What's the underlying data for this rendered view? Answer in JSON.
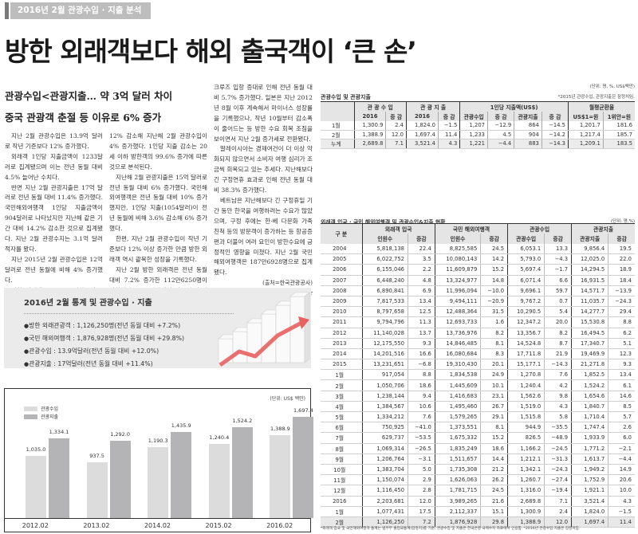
{
  "section_tag": "2016년 2월 관광수입 · 지출 분석",
  "headline": "방한 외래객보다 해외 출국객이 ‘큰 손’",
  "subheads": [
    "관광수입<관광지출… 약 3억 달러 차이",
    "중국 관광객 춘절 등 이유로 6% 증가"
  ],
  "article": {
    "col1": [
      "지난 2월 관광수입은 13.9억 달러로 작년 기준보다 12% 증가했다.",
      "외래객 1인당 지출금액이 1233달러로 집계됐으며 이는 전년 동월 대비 4.5% 늘어난 수치다.",
      "반면 지난 2월 관광지출은 17억 달러로 전년 동월 대비 11.4% 증가했다. 국민해외여행객 1인당 지출금액이 904달러로 나타났지만 지난해 같은 기간 대비 14.2% 감소한 것으로 집계됐다. 지난 2월 관광수지는 3.1억 달러 적자를 봤다.",
      "지난 2015년 2월 관광수입은 12억 달러로 전년 동월에 비해 4% 증가했다.",
      "방한 외래객은 19% 증가했으나 1인당 지출이 1181달러로 전년 동월에 비해"
    ],
    "col2": [
      "12% 감소해 지난해 2월 관광수입이 4% 증가했다. 1인당 지출 감소는 20세 이하 방한객의 99.6% 증가에 따른 것으로 분석된다.",
      "지난해 2월 관광지출은 15억 달러로 전년 동월 대비 6% 증가했다. 국민해외여행객은 전년 동월 대비 10% 증가했지만, 1인당 지출(1054달러)이 전년 동월에 비해 3.6% 감소해 6% 증가했다.",
      "한편, 지난 2월 관광수입이 작년 기준보다 12% 이상 증가한 만큼 방한 외래객 역시 괄목한 성장을 기록했다.",
      "지난 2월 방한 외래객은 전년 동월 대비 7.2% 증가한 112만6250명이 방한했다. 중국 관광객의 경우 춘절 연휴 기간과"
    ],
    "col3": [
      "크루즈 입항 증대로 인해 전년 동월 대비 5.7% 증가했다. 일본은 지난 2012년 8월 이후 계속해서 마이너스 성장률을 기록했으나, 작년 10월부터 감소폭이 줄어드는 등 방한 수요 회복 조짐을 보이면서 지난 2월 증가세로 전환됐다.",
      "말레이시아는 경제여건이 더 이상 악화되지 않으면서 소비자 여행 심리가 조금씩 회복되고 있는 추세다. 지난해보다 긴 구정연휴 효과로 인해 전년 동월 대비 38.3% 증가했다.",
      "베트남은 지난해보다 긴 구정휴일 기간 동안 한국을 여행하려는 수요가 많았으며, 구정 후에는 한·베 다문화 가족 친척 등의 방문객이 증가하는 등 항공증편과 더불어 여러 요인이 방한수요에 긍정적인 영향을 미쳤다. 지난 2월 국민 해외여행객은 187만6928명으로 집계됐다."
    ],
    "source": "(출처=한국관광공사)",
    "byline": "(강세희 기자) ksh@gtn.co.kr"
  },
  "stat_box": {
    "title": "2016년 2월 통계 및 관광수입 · 지출",
    "items": [
      "방한 외래관광객 : 1,126,250명(전년 동월 대비 +7.2%)",
      "국민 해외여행객 : 1,876,928명(전년 동월 대비 +29.8%)",
      "관광수입 : 13.9억달러(전년 동월 대비 +12.0%)",
      "관광지출 : 17억달러(전년 동월 대비 +11.4%)"
    ]
  },
  "chart_data": {
    "type": "bar",
    "title": "",
    "unit": "(단위: US$ 백만)",
    "categories": [
      "2012.02",
      "2013.02",
      "2014.02",
      "2015.02",
      "2016.02"
    ],
    "series": [
      {
        "name": "관광수입",
        "color": "#dcdcdc",
        "values": [
          1035.0,
          937.5,
          1190.3,
          1240.4,
          1388.9
        ],
        "labels": [
          "1,035.0",
          "937.5",
          "1,190.3",
          "1,240.4",
          "1,388.9"
        ]
      },
      {
        "name": "관광지출",
        "color": "#b4b4b6",
        "values": [
          1334.1,
          1292.0,
          1435.9,
          1524.2,
          1697.4
        ],
        "labels": [
          "1,334.1",
          "1,292.0",
          "1,435.9",
          "1,524.2",
          "1,697.4"
        ]
      }
    ],
    "xlabel": "",
    "ylabel": "",
    "ylim": [
      0,
      1800
    ],
    "grid": false,
    "legend_position": "top-left"
  },
  "table1": {
    "title": "관광수입 및 관광지출",
    "unit": "(단위: 명, %, US$백만)",
    "note": "*2015년 관광수입, 관광지출은 잠정치임.",
    "group_headers": [
      "관 광 수 입",
      "관 광 지 출",
      "1인당 지출액(US$)",
      "월평균환율"
    ],
    "sub_headers": [
      "2016",
      "증 감",
      "2016",
      "증 감",
      "관광수입",
      "증 감",
      "관광지출",
      "증 감",
      "US$1=원",
      "1위안=원"
    ],
    "rows": [
      [
        "1월",
        "1,300.9",
        "2.4",
        "1,824.0",
        "−1.5",
        "1,207",
        "−12.9",
        "864",
        "−14.5",
        "1,201.7",
        "181.6"
      ],
      [
        "2월",
        "1,388.9",
        "12.0",
        "1,697.4",
        "11.4",
        "1,233",
        "4.5",
        "904",
        "−14.2",
        "1,217.4",
        "185.7"
      ],
      [
        "누계",
        "2,689.8",
        "7.1",
        "3,521.4",
        "4.3",
        "1,221",
        "−4.4",
        "883",
        "−14.3",
        "1,209.1",
        "183.5"
      ]
    ]
  },
  "table2": {
    "title": "외래객 입국 · 국민 해외여행객 및 관광수입&지출 현황",
    "unit": "(단위: 명,%)",
    "row_header": "구 분",
    "group_headers": [
      "외래객 입국",
      "국민 해외여행객",
      "관광수입",
      "관광지출"
    ],
    "sub_headers": [
      "인원수",
      "증감",
      "인원수",
      "증감",
      "관광수입",
      "증감",
      "관광지출",
      "증감"
    ],
    "rows": [
      [
        "2004",
        "5,818,138",
        "22.4",
        "8,825,585",
        "24.5",
        "6,053.1",
        "13.3",
        "9,856.4",
        "19.5"
      ],
      [
        "2005",
        "6,022,752",
        "3.5",
        "10,080,143",
        "14.2",
        "5,793.0",
        "−4.3",
        "12,025.0",
        "22.0"
      ],
      [
        "2006",
        "6,155,046",
        "2.2",
        "11,609,879",
        "15.2",
        "5,697.4",
        "−1.7",
        "14,294.5",
        "18.9"
      ],
      [
        "2007",
        "6,448,240",
        "4.8",
        "13,324,977",
        "14.8",
        "6,071.4",
        "6.6",
        "16,931.5",
        "18.4"
      ],
      [
        "2008",
        "6,890,841",
        "6.9",
        "11,996,094",
        "−10.0",
        "9,696.1",
        "59.7",
        "14,571.7",
        "−13.9"
      ],
      [
        "2009",
        "7,817,533",
        "13.4",
        "9,494,111",
        "−20.9",
        "9,767.2",
        "0.7",
        "11,035.7",
        "−24.3"
      ],
      [
        "2010",
        "8,797,658",
        "12.5",
        "12,488,364",
        "31.5",
        "10,290.5",
        "5.4",
        "14,277.7",
        "29.4"
      ],
      [
        "2011",
        "9,794,796",
        "11.3",
        "12,693,733",
        "1.6",
        "12,347.2",
        "20.0",
        "15,530.8",
        "8.8"
      ],
      [
        "2012",
        "11,140,028",
        "13.7",
        "13,736,976",
        "8.2",
        "13,356.7",
        "8.2",
        "16,494.5",
        "6.2"
      ],
      [
        "2013",
        "12,175,550",
        "9.3",
        "14,846,485",
        "8.1",
        "14,524.8",
        "8.7",
        "17,340.7",
        "5.1"
      ],
      [
        "2014",
        "14,201,516",
        "16.6",
        "16,080,684",
        "8.3",
        "17,711.8",
        "21.9",
        "19,469.9",
        "12.3"
      ],
      [
        "2015",
        "13,231,651",
        "−6.8",
        "19,310,430",
        "20.1",
        "15,177.1",
        "−14.3",
        "21,271.8",
        "9.3"
      ],
      [
        "1월",
        "917,054",
        "8.8",
        "1,834,538",
        "24.9",
        "1,270.8",
        "7.6",
        "1,852.5",
        "13.4"
      ],
      [
        "2월",
        "1,050,706",
        "18.6",
        "1,445,609",
        "10.1",
        "1,240.4",
        "4.2",
        "1,524.2",
        "6.1"
      ],
      [
        "3월",
        "1,238,144",
        "9.4",
        "1,416,683",
        "23.1",
        "1,562.6",
        "9.8",
        "1,654.6",
        "14.6"
      ],
      [
        "4월",
        "1,384,567",
        "10.6",
        "1,495,460",
        "26.7",
        "1,519.0",
        "4.3",
        "1,840.7",
        "8.5"
      ],
      [
        "5월",
        "1,334,212",
        "7.6",
        "1,579,265",
        "29.1",
        "1,515.8",
        "5.8",
        "1,710.4",
        "5.7"
      ],
      [
        "6월",
        "750,925",
        "−41.0",
        "1,373,551",
        "8.1",
        "944.9",
        "−35.5",
        "1,747.4",
        "2.6"
      ],
      [
        "7월",
        "629,737",
        "−53.5",
        "1,675,332",
        "15.2",
        "826.5",
        "−48.9",
        "1,933.9",
        "6.0"
      ],
      [
        "8월",
        "1,069,314",
        "−26.5",
        "1,835,249",
        "18.6",
        "1,166.2",
        "−24.5",
        "1,771.2",
        "−2.1"
      ],
      [
        "9월",
        "1,206,764",
        "−3.1",
        "1,511,657",
        "14.4",
        "1,212.1",
        "−31.3",
        "1,613.7",
        "−4.4"
      ],
      [
        "10월",
        "1,383,704",
        "5.0",
        "1,735,308",
        "21.2",
        "1,342.1",
        "−24.3",
        "1,949.2",
        "14.9"
      ],
      [
        "11월",
        "1,150,074",
        "2.9",
        "1,626,063",
        "26.2",
        "1,260.7",
        "−27.4",
        "1,752.9",
        "20.6"
      ],
      [
        "12월",
        "1,116,450",
        "2.8",
        "1,781,715",
        "24.5",
        "1,316.0",
        "−19.4",
        "1,921.1",
        "10.0"
      ],
      [
        "2016",
        "2,203,681",
        "12.0",
        "3,989,265",
        "21.6",
        "2,689.8",
        "7.1",
        "3,521.4",
        "4.3"
      ],
      [
        "1월",
        "1,077,431",
        "17.5",
        "2,112,337",
        "15.1",
        "1,300.9",
        "2.4",
        "1,824.0",
        "−1.5"
      ],
      [
        "2월",
        "1,126,250",
        "7.2",
        "1,876,928",
        "29.8",
        "1,388.9",
        "12.0",
        "1,697.4",
        "11.4"
      ]
    ],
    "footnote": "*외래객 입국 및 국민해외여행객 통계는 법무부 출입국통계(잠정치)를 기준, 관광수입 및 지출은 한국은행 국제수지 자료에서 인용함. *2016년 관광수입·지출은 잠정치임."
  }
}
